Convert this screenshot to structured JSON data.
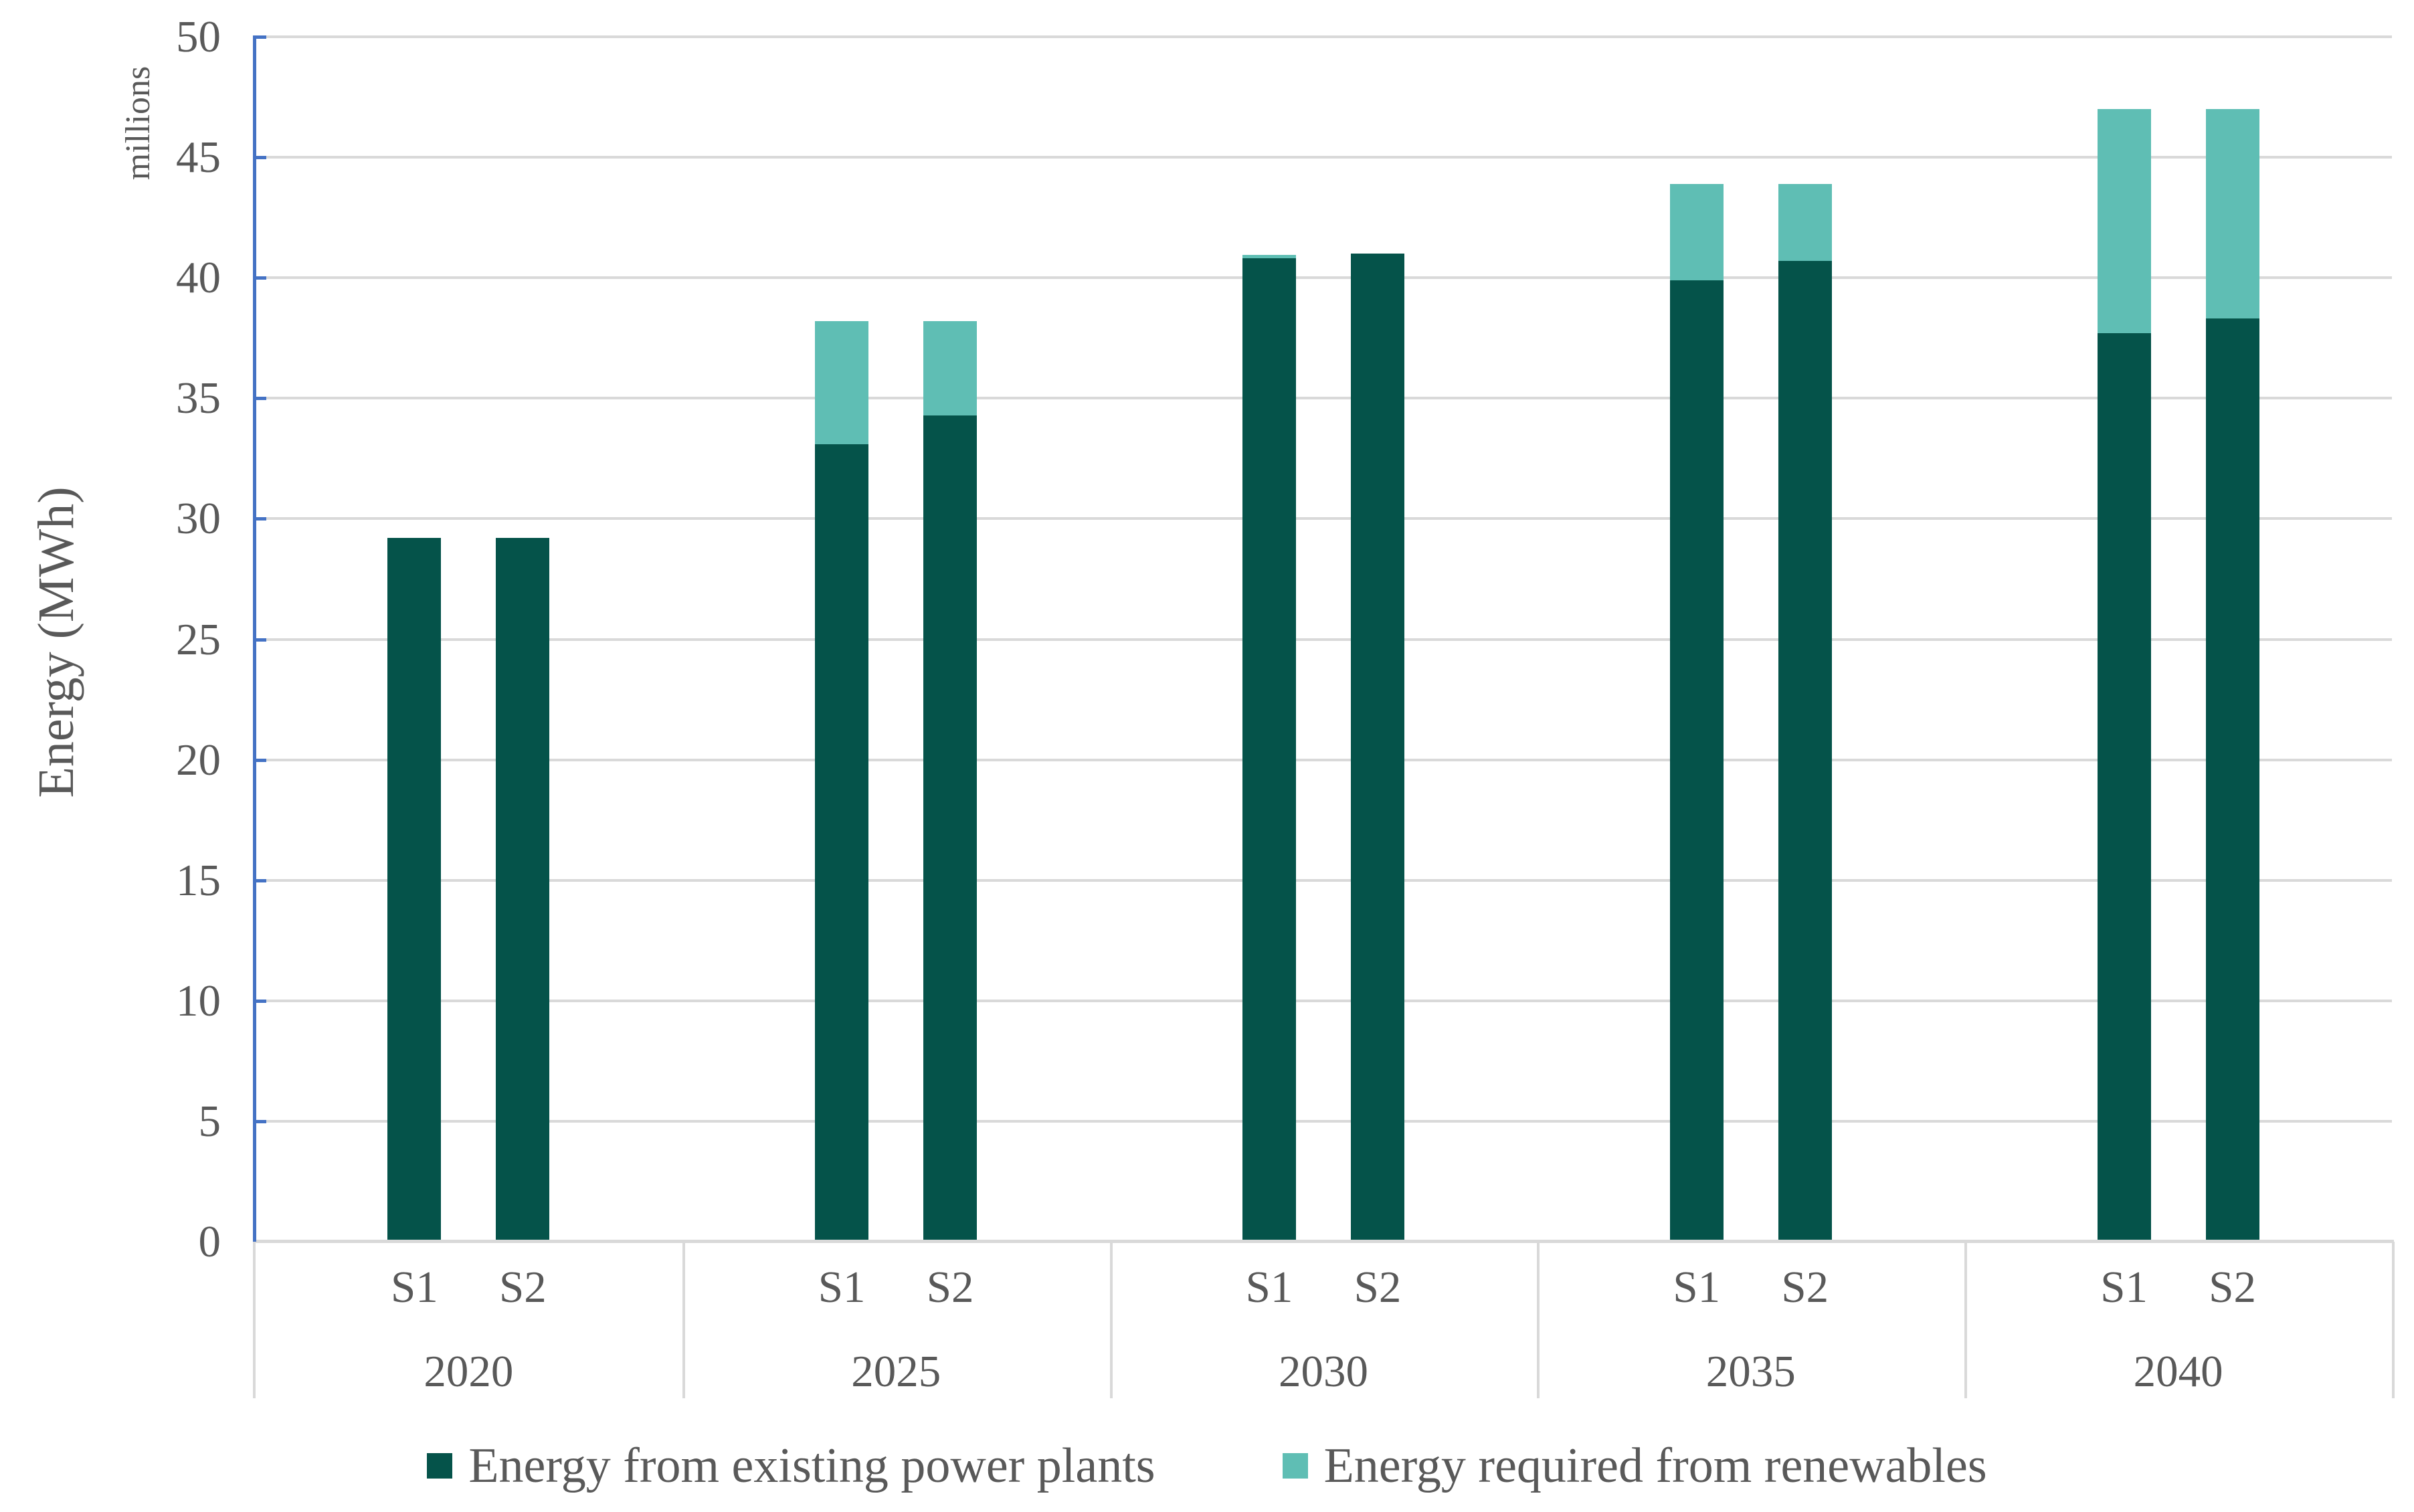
{
  "chart_data": {
    "type": "bar",
    "stacked": true,
    "ylabel": "Energy (MWh)",
    "y_units_label": "millions",
    "ylim": [
      0,
      50
    ],
    "y_tick_step": 5,
    "y_ticks": [
      0,
      5,
      10,
      15,
      20,
      25,
      30,
      35,
      40,
      45,
      50
    ],
    "grid": true,
    "legend_position": "bottom",
    "group_labels": [
      "2020",
      "2025",
      "2030",
      "2035",
      "2040"
    ],
    "bar_labels": [
      "S1",
      "S2"
    ],
    "series": [
      {
        "name": "Energy from existing power plants",
        "color": "#05534A",
        "values": [
          [
            29.2,
            29.2
          ],
          [
            33.1,
            34.3
          ],
          [
            40.8,
            41.0
          ],
          [
            39.9,
            40.7
          ],
          [
            37.7,
            38.3
          ]
        ]
      },
      {
        "name": "Energy required from renewables",
        "color": "#5FBEB4",
        "values": [
          [
            0,
            0
          ],
          [
            5.1,
            3.9
          ],
          [
            0.15,
            0
          ],
          [
            4.0,
            3.2
          ],
          [
            9.3,
            8.7
          ]
        ]
      }
    ],
    "totals": [
      [
        29.2,
        29.2
      ],
      [
        38.2,
        38.2
      ],
      [
        40.95,
        41.0
      ],
      [
        43.9,
        43.9
      ],
      [
        47.0,
        47.0
      ]
    ]
  },
  "colors": {
    "y_axis_line": "#4472C4",
    "gridline": "#D9D9D9",
    "text": "#595959",
    "background": "#FFFFFF"
  }
}
